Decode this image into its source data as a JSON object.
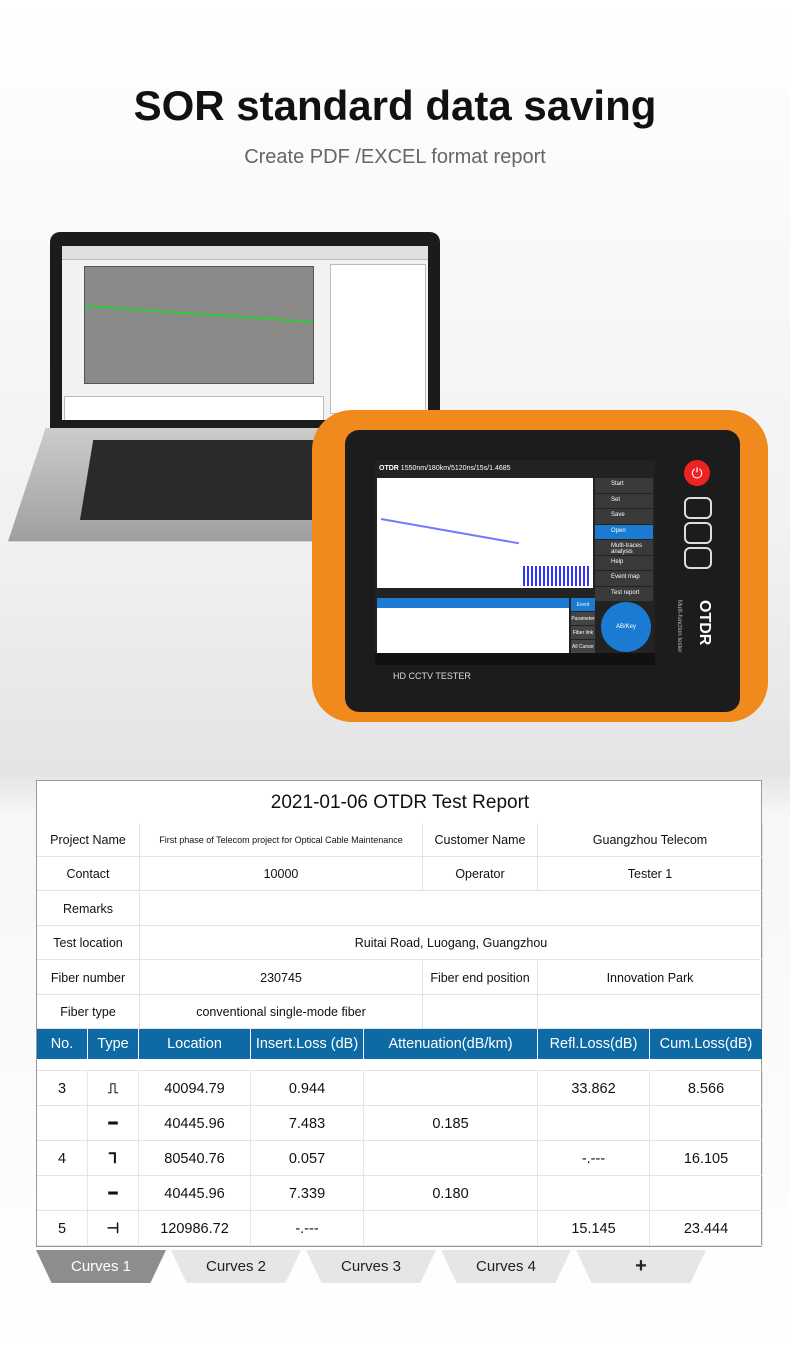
{
  "header": {
    "title": "SOR standard data saving",
    "subtitle": "Create PDF /EXCEL format report"
  },
  "device": {
    "screen_header": "1550nm/180km/5120ns/15s/1.4685",
    "app_label": "OTDR",
    "menu": [
      "Start",
      "Set",
      "Save",
      "Open",
      "Multi-traces analysis",
      "Help",
      "Event map",
      "Test report"
    ],
    "menu_active": "Open",
    "event_tabs": [
      "Event",
      "Parameter",
      "Fiber link",
      "All Cursor"
    ],
    "dpad_label": "AB/Key",
    "model_label": "HD CCTV TESTER",
    "brand_side": "OTDR",
    "brand_sub": "Multi-function tester",
    "accent": "#1b7bd2",
    "body_color": "#f08a1c"
  },
  "report": {
    "title": "2021-01-06 OTDR Test Report",
    "fields": {
      "project_name_label": "Project Name",
      "project_name": "First phase of Telecom project for Optical Cable Maintenance",
      "customer_name_label": "Customer Name",
      "customer_name": "Guangzhou Telecom",
      "contact_label": "Contact",
      "contact": "10000",
      "operator_label": "Operator",
      "operator": "Tester 1",
      "remarks_label": "Remarks",
      "remarks": "",
      "test_location_label": "Test location",
      "test_location": "Ruitai Road, Luogang, Guangzhou",
      "fiber_number_label": "Fiber number",
      "fiber_number": "230745",
      "fiber_end_label": "Fiber end position",
      "fiber_end": "Innovation Park",
      "fiber_type_label": "Fiber type",
      "fiber_type": "conventional single-mode fiber"
    },
    "columns": [
      "No.",
      "Type",
      "Location",
      "Insert.Loss (dB)",
      "Attenuation(dB/km)",
      "Refl.Loss(dB)",
      "Cum.Loss(dB)"
    ],
    "header_color": "#0d6aa5",
    "rows": [
      {
        "no": "3",
        "type": "reflective-event-icon",
        "glyph": "⎍",
        "location": "40094.79",
        "insert": "0.944",
        "atten": "",
        "refl": "33.862",
        "cum": "8.566"
      },
      {
        "no": "",
        "type": "fiber-section-icon",
        "glyph": "━",
        "location": "40445.96",
        "insert": "7.483",
        "atten": "0.185",
        "refl": "",
        "cum": ""
      },
      {
        "no": "4",
        "type": "non-reflective-event-icon",
        "glyph": "⅂",
        "location": "80540.76",
        "insert": "0.057",
        "atten": "",
        "refl": "-.---",
        "cum": "16.105"
      },
      {
        "no": "",
        "type": "fiber-section-icon",
        "glyph": "━",
        "location": "40445.96",
        "insert": "7.339",
        "atten": "0.180",
        "refl": "",
        "cum": ""
      },
      {
        "no": "5",
        "type": "fiber-end-icon",
        "glyph": "⊣",
        "location": "120986.72",
        "insert": "-.---",
        "atten": "",
        "refl": "15.145",
        "cum": "23.444"
      }
    ]
  },
  "tabs": [
    {
      "label": "Curves 1",
      "active": true
    },
    {
      "label": "Curves 2"
    },
    {
      "label": "Curves 3"
    },
    {
      "label": "Curves 4"
    },
    {
      "label": "+"
    }
  ]
}
